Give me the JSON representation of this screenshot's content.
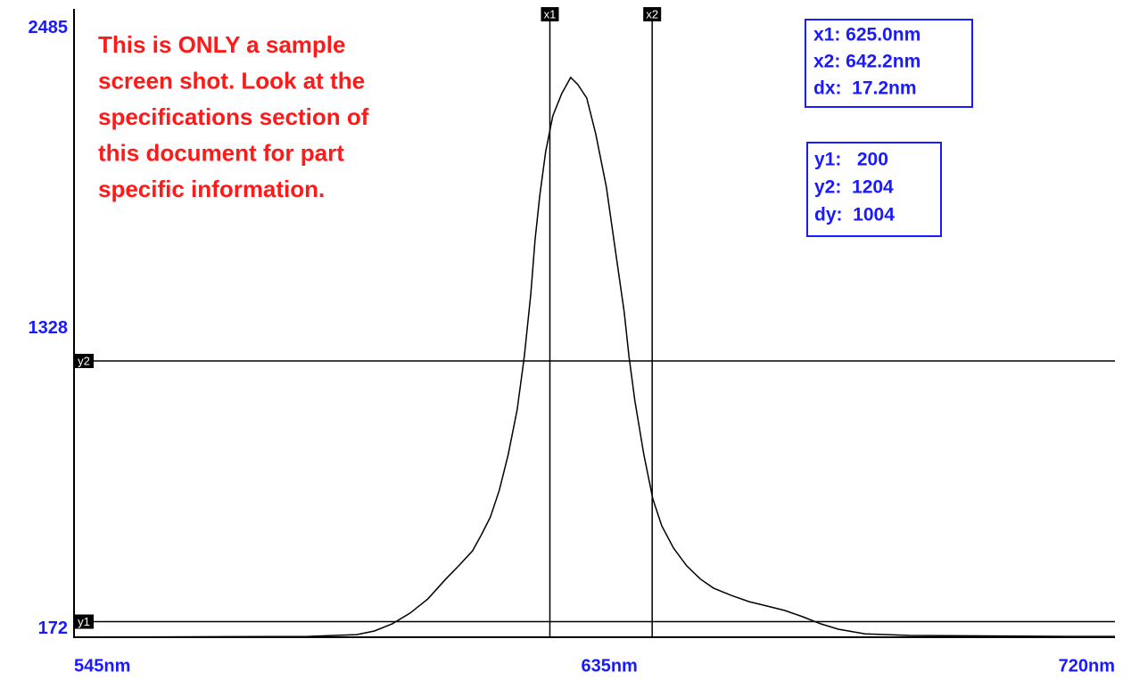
{
  "chart_data": {
    "type": "line",
    "note": [
      "This is ONLY a sample",
      "screen shot. Look at the",
      "specifications section of",
      "this document for part",
      "specific information."
    ],
    "x": [
      545.0,
      584.3,
      592.5,
      595.5,
      598.5,
      601.5,
      604.5,
      607.5,
      609.8,
      612.0,
      613.5,
      615.0,
      616.5,
      618.0,
      619.5,
      620.7,
      621.8,
      622.5,
      623.3,
      624.3,
      625.5,
      627.0,
      628.5,
      629.7,
      631.2,
      632.7,
      634.5,
      636.0,
      637.5,
      638.3,
      639.3,
      640.8,
      642.3,
      643.8,
      645.8,
      648.0,
      650.3,
      652.5,
      655.5,
      658.5,
      661.5,
      664.5,
      667.5,
      670.5,
      673.5,
      678.0,
      685.5,
      712.5,
      720.0
    ],
    "series": [
      {
        "color": "#000000",
        "values": [
          140,
          143,
          150,
          164,
          192,
          233,
          288,
          364,
          418,
          473,
          535,
          603,
          706,
          844,
          1016,
          1221,
          1462,
          1668,
          1839,
          2011,
          2148,
          2234,
          2296,
          2269,
          2217,
          2080,
          1874,
          1633,
          1393,
          1221,
          1050,
          844,
          673,
          569,
          483,
          415,
          364,
          329,
          301,
          277,
          260,
          243,
          219,
          192,
          171,
          153,
          147,
          143,
          143
        ]
      }
    ],
    "xlim": [
      545,
      720
    ],
    "xticks": [
      {
        "value": 545,
        "label": "545nm"
      },
      {
        "value": 635,
        "label": "635nm"
      },
      {
        "value": 720,
        "label": "720nm"
      }
    ],
    "ylim": [
      140,
      2560
    ],
    "yticks": [
      2485,
      1328,
      172
    ],
    "grid": false,
    "cursor_x": [
      {
        "value": 625.0,
        "label": "x1"
      },
      {
        "value": 642.2,
        "label": "x2"
      }
    ],
    "cursor_y": [
      {
        "value": 200,
        "label": "y1"
      },
      {
        "value": 1204,
        "label": "y2"
      }
    ],
    "readout_x": [
      "x1: 625.0nm",
      "x2: 642.2nm",
      "dx:  17.2nm"
    ],
    "readout_y": [
      "y1:   200",
      "y2:  1204",
      "dy:  1004"
    ]
  }
}
